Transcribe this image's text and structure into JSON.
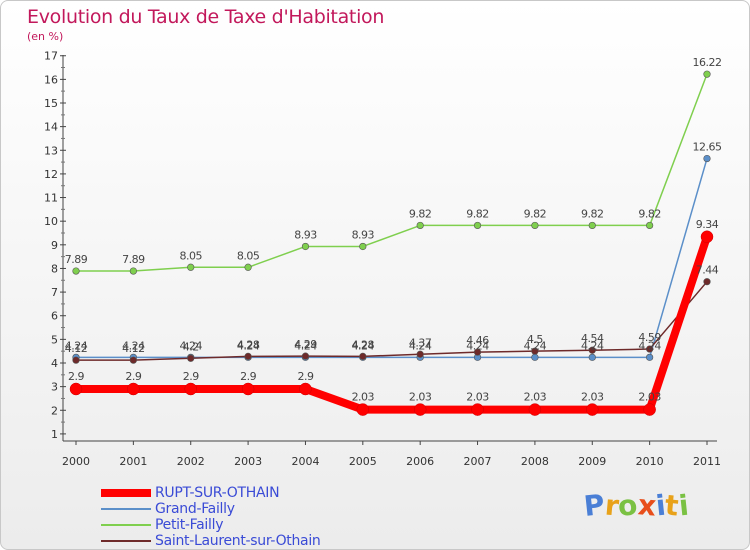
{
  "title": "Evolution du Taux de Taxe d'Habitation",
  "subtitle": "(en %)",
  "logo": {
    "letters": [
      "P",
      "r",
      "o",
      "x",
      "i",
      "t",
      "i"
    ],
    "colors": [
      "#4a7fd6",
      "#e8a21a",
      "#7ac143",
      "#e84e1b",
      "#4a7fd6",
      "#e8a21a",
      "#7ac143"
    ]
  },
  "chart_data": {
    "type": "line",
    "x": [
      "2000",
      "2001",
      "2002",
      "2003",
      "2004",
      "2005",
      "2006",
      "2007",
      "2008",
      "2009",
      "2010",
      "2011"
    ],
    "yticks": [
      "1",
      "2",
      "3",
      "4",
      "5",
      "6",
      "7",
      "8",
      "9",
      "10",
      "11",
      "12",
      "13",
      "14",
      "15",
      "16",
      "17"
    ],
    "ylim": [
      0.7,
      17.2
    ],
    "grid": false,
    "legend_position": "bottom-left",
    "series": [
      {
        "name": "RUPT-SUR-OTHAIN",
        "color": "#ff0000",
        "values": [
          2.9,
          2.9,
          2.9,
          2.9,
          2.9,
          2.03,
          2.03,
          2.03,
          2.03,
          2.03,
          2.03,
          9.34
        ],
        "labels": [
          "2.9",
          "2.9",
          "2.9",
          "2.9",
          "2.9",
          "2.03",
          "2.03",
          "2.03",
          "2.03",
          "2.03",
          "2.03",
          "9.34"
        ]
      },
      {
        "name": "Grand-Failly",
        "color": "#5b8fc9",
        "values": [
          4.24,
          4.24,
          4.24,
          4.24,
          4.24,
          4.24,
          4.24,
          4.24,
          4.24,
          4.24,
          4.24,
          12.65
        ],
        "labels": [
          "4.24",
          "4.24",
          "4.24",
          "4.24",
          "4.24",
          "4.24",
          "4.24",
          "4.24",
          "4.24",
          "4.24",
          "4.24",
          "12.65"
        ]
      },
      {
        "name": "Petit-Failly",
        "color": "#7fcf4e",
        "values": [
          7.89,
          7.89,
          8.05,
          8.05,
          8.93,
          8.93,
          9.82,
          9.82,
          9.82,
          9.82,
          9.82,
          16.22
        ],
        "labels": [
          "7.89",
          "7.89",
          "8.05",
          "8.05",
          "8.93",
          "8.93",
          "9.82",
          "9.82",
          "9.82",
          "9.82",
          "9.82",
          "16.22"
        ]
      },
      {
        "name": "Saint-Laurent-sur-Othain",
        "color": "#6e2a2a",
        "values": [
          4.12,
          4.12,
          4.2,
          4.28,
          4.29,
          4.28,
          4.37,
          4.46,
          4.5,
          4.54,
          4.59,
          7.44
        ],
        "labels": [
          "4.12",
          "4.12",
          "4.2",
          "4.28",
          "4.29",
          "4.28",
          "4.37",
          "4.46",
          "4.5",
          "4.54",
          "4.59",
          "7.44"
        ]
      }
    ]
  }
}
